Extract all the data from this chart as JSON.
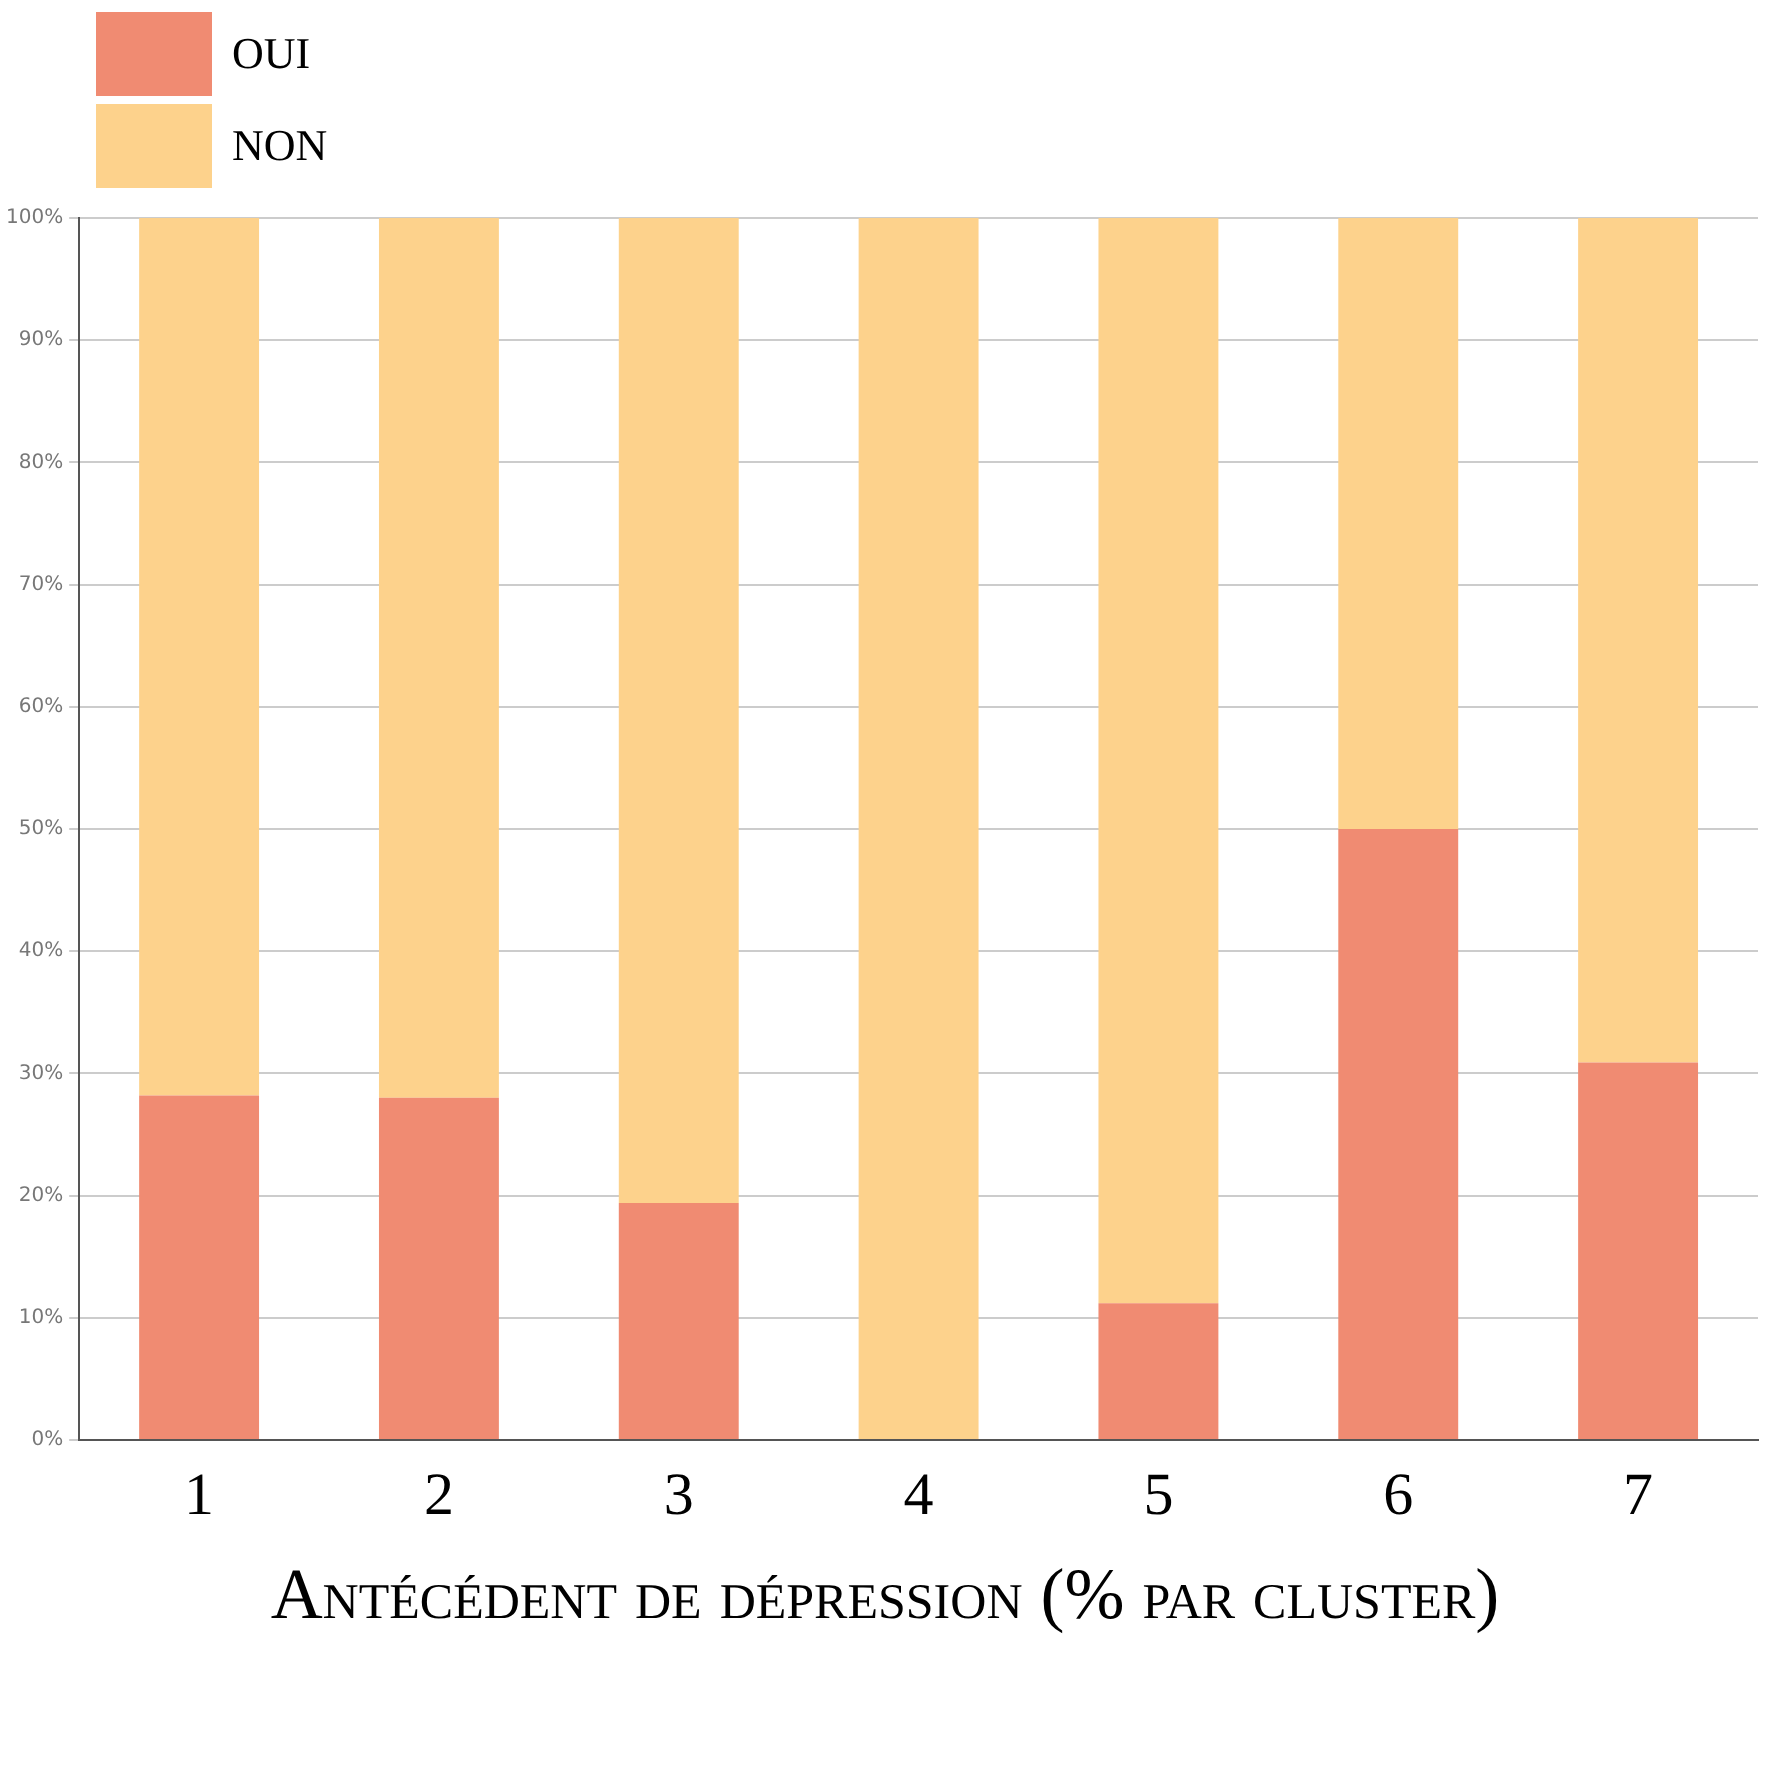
{
  "chart_data": {
    "type": "bar",
    "xlabel": "Antécédent de dépression (% par cluster)",
    "categories": [
      "1",
      "2",
      "3",
      "4",
      "5",
      "6",
      "7"
    ],
    "stacked": true,
    "series": [
      {
        "name": "OUI",
        "color": "#f08b72",
        "values": [
          28.2,
          28.0,
          19.4,
          0,
          11.2,
          50,
          30.9
        ]
      },
      {
        "name": "NON",
        "color": "#fdd28c",
        "values": [
          71.8,
          72.0,
          80.6,
          100,
          88.8,
          50,
          69.1
        ]
      }
    ],
    "ylim": [
      0,
      100
    ],
    "yticks": [
      {
        "value": 0,
        "label": "0%"
      },
      {
        "value": 10,
        "label": "10%"
      },
      {
        "value": 20,
        "label": "20%"
      },
      {
        "value": 30,
        "label": "30%"
      },
      {
        "value": 40,
        "label": "40%"
      },
      {
        "value": 50,
        "label": "50%"
      },
      {
        "value": 60,
        "label": "60%"
      },
      {
        "value": 70,
        "label": "70%"
      },
      {
        "value": 80,
        "label": "80%"
      },
      {
        "value": 90,
        "label": "90%"
      },
      {
        "value": 100,
        "label": "100%"
      }
    ],
    "grid": "y",
    "legend": "top left"
  }
}
